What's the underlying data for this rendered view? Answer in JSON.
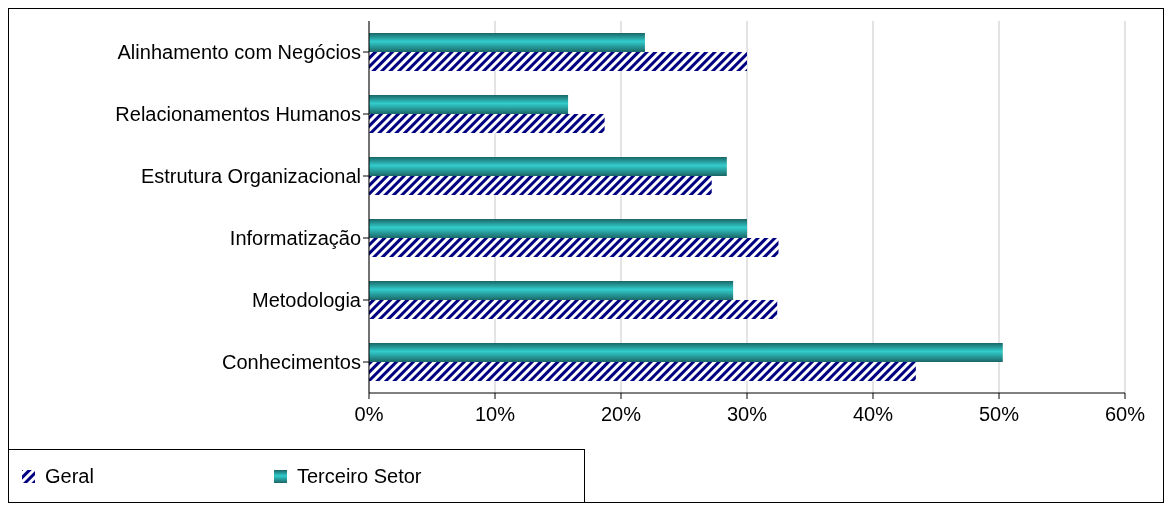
{
  "chart_data": {
    "type": "bar",
    "orientation": "horizontal",
    "categories": [
      "Alinhamento com Negócios",
      "Relacionamentos Humanos",
      "Estrutura Organizacional",
      "Informatização",
      "Metodologia",
      "Conhecimentos"
    ],
    "series": [
      {
        "name": "Geral",
        "color": "#000080",
        "values": [
          30.0,
          18.7,
          27.2,
          32.5,
          32.4,
          43.4
        ]
      },
      {
        "name": "Terceiro Setor",
        "color": "#33cccc",
        "values": [
          21.9,
          15.8,
          28.4,
          30.0,
          28.9,
          50.3
        ]
      }
    ],
    "xlim": [
      0,
      60
    ],
    "xticks": [
      {
        "value": 0,
        "label": "0%"
      },
      {
        "value": 10,
        "label": "10%"
      },
      {
        "value": 20,
        "label": "20%"
      },
      {
        "value": 30,
        "label": "30%"
      },
      {
        "value": 40,
        "label": "40%"
      },
      {
        "value": 50,
        "label": "50%"
      },
      {
        "value": 60,
        "label": "60%"
      }
    ],
    "grid": "x",
    "legend": "bottom left"
  }
}
